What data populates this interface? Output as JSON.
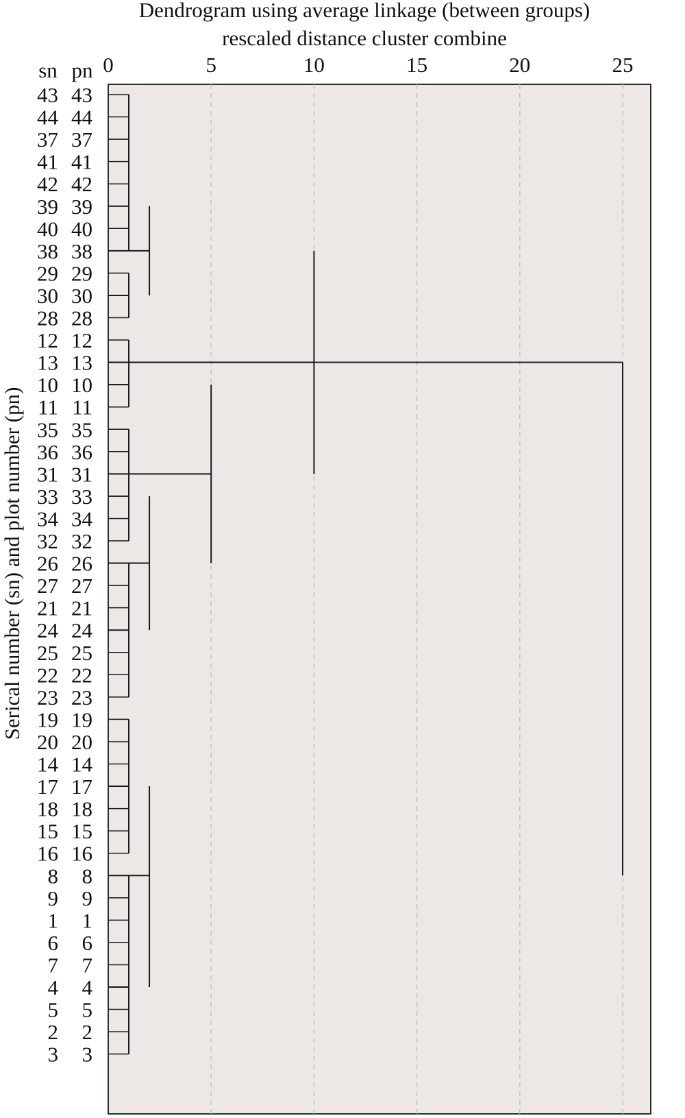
{
  "title": {
    "line1": "Dendrogram using average linkage (between groups)",
    "line2": "rescaled distance cluster combine"
  },
  "columns": {
    "sn": "sn",
    "pn": "pn"
  },
  "y_axis_label": "Serical number (sn) and plot number (pn)",
  "x_axis": {
    "ticks": [
      0,
      5,
      10,
      15,
      20,
      25
    ],
    "range": [
      0,
      25.75
    ]
  },
  "colors": {
    "panel": "#ede7e5",
    "line": "#1a1a1a",
    "grid": "#bdbdbd"
  },
  "leaves": [
    {
      "sn": "43",
      "pn": "43"
    },
    {
      "sn": "44",
      "pn": "44"
    },
    {
      "sn": "37",
      "pn": "37"
    },
    {
      "sn": "41",
      "pn": "41"
    },
    {
      "sn": "42",
      "pn": "42"
    },
    {
      "sn": "39",
      "pn": "39"
    },
    {
      "sn": "40",
      "pn": "40"
    },
    {
      "sn": "38",
      "pn": "38"
    },
    {
      "sn": "29",
      "pn": "29"
    },
    {
      "sn": "30",
      "pn": "30"
    },
    {
      "sn": "28",
      "pn": "28"
    },
    {
      "sn": "12",
      "pn": "12"
    },
    {
      "sn": "13",
      "pn": "13"
    },
    {
      "sn": "10",
      "pn": "10"
    },
    {
      "sn": "11",
      "pn": "11"
    },
    {
      "sn": "35",
      "pn": "35"
    },
    {
      "sn": "36",
      "pn": "36"
    },
    {
      "sn": "31",
      "pn": "31"
    },
    {
      "sn": "33",
      "pn": "33"
    },
    {
      "sn": "34",
      "pn": "34"
    },
    {
      "sn": "32",
      "pn": "32"
    },
    {
      "sn": "26",
      "pn": "26"
    },
    {
      "sn": "27",
      "pn": "27"
    },
    {
      "sn": "21",
      "pn": "21"
    },
    {
      "sn": "24",
      "pn": "24"
    },
    {
      "sn": "25",
      "pn": "25"
    },
    {
      "sn": "22",
      "pn": "22"
    },
    {
      "sn": "23",
      "pn": "23"
    },
    {
      "sn": "19",
      "pn": "19"
    },
    {
      "sn": "20",
      "pn": "20"
    },
    {
      "sn": "14",
      "pn": "14"
    },
    {
      "sn": "17",
      "pn": "17"
    },
    {
      "sn": "18",
      "pn": "18"
    },
    {
      "sn": "15",
      "pn": "15"
    },
    {
      "sn": "16",
      "pn": "16"
    },
    {
      "sn": "8",
      "pn": "8"
    },
    {
      "sn": "9",
      "pn": "9"
    },
    {
      "sn": "1",
      "pn": "1"
    },
    {
      "sn": "6",
      "pn": "6"
    },
    {
      "sn": "7",
      "pn": "7"
    },
    {
      "sn": "4",
      "pn": "4"
    },
    {
      "sn": "5",
      "pn": "5"
    },
    {
      "sn": "2",
      "pn": "2"
    },
    {
      "sn": "3",
      "pn": "3"
    }
  ],
  "clusters": [
    {
      "name": "cluster-a1",
      "distance": 1,
      "first_leaf": 0,
      "last_leaf": 7,
      "join_leaf": 5
    },
    {
      "name": "cluster-a2",
      "distance": 1,
      "first_leaf": 8,
      "last_leaf": 10,
      "join_leaf": 9
    },
    {
      "name": "cluster-a",
      "distance": 2,
      "first_leaf": 5,
      "last_leaf": 9,
      "join_leaf": 7
    },
    {
      "name": "cluster-b1",
      "distance": 1,
      "first_leaf": 11,
      "last_leaf": 14,
      "join_leaf": 13
    },
    {
      "name": "cluster-b2",
      "distance": 1,
      "first_leaf": 15,
      "last_leaf": 20,
      "join_leaf": 18
    },
    {
      "name": "cluster-b3",
      "distance": 1,
      "first_leaf": 21,
      "last_leaf": 27,
      "join_leaf": 24
    },
    {
      "name": "cluster-b23",
      "distance": 2,
      "first_leaf": 18,
      "last_leaf": 24,
      "join_leaf": 21
    },
    {
      "name": "cluster-b",
      "distance": 5,
      "first_leaf": 13,
      "last_leaf": 21,
      "join_leaf": 17
    },
    {
      "name": "cluster-ab",
      "distance": 10,
      "first_leaf": 7,
      "last_leaf": 17,
      "join_leaf": 12
    },
    {
      "name": "cluster-c1",
      "distance": 1,
      "first_leaf": 28,
      "last_leaf": 34,
      "join_leaf": 31
    },
    {
      "name": "cluster-c2",
      "distance": 1,
      "first_leaf": 35,
      "last_leaf": 43,
      "join_leaf": 40
    },
    {
      "name": "cluster-c",
      "distance": 2,
      "first_leaf": 31,
      "last_leaf": 40,
      "join_leaf": 35
    },
    {
      "name": "cluster-root",
      "distance": 25,
      "first_leaf": 12,
      "last_leaf": 35,
      "join_leaf": 12
    }
  ]
}
